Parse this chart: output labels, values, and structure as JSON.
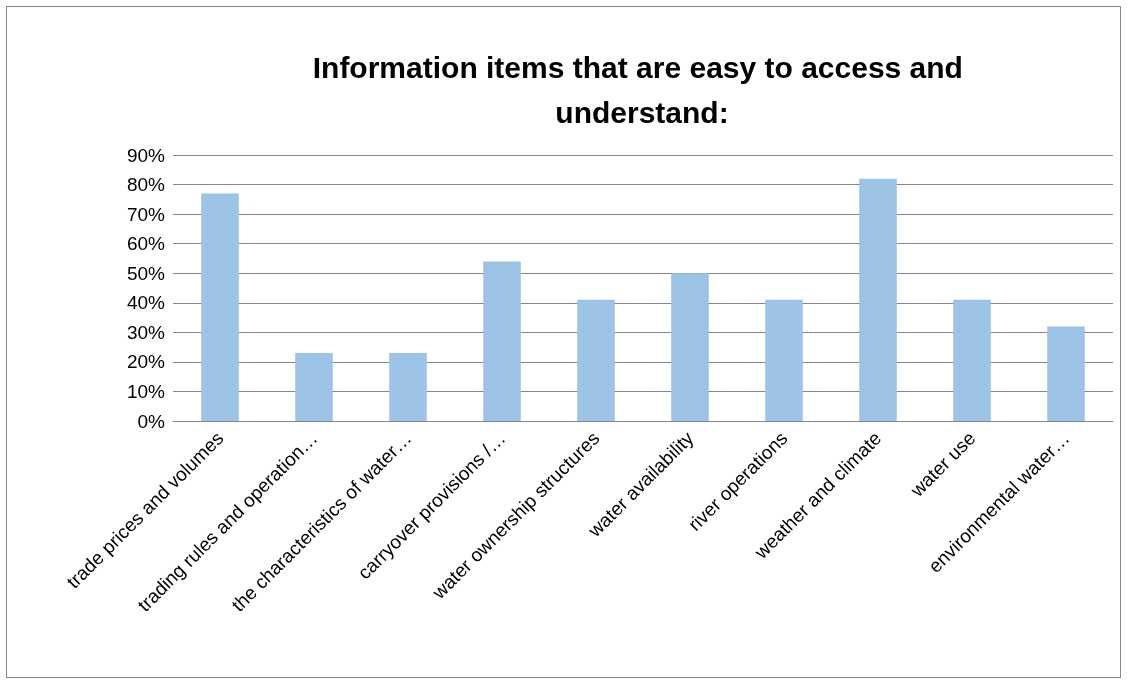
{
  "chart_data": {
    "type": "bar",
    "title": "Information items that are easy to access and understand:",
    "categories": [
      "trade prices and volumes",
      "trading rules and operation…",
      "the characteristics of water…",
      "carryover provisions /…",
      "water ownership structures",
      "water availability",
      "river operations",
      "weather and climate",
      "water use",
      "environmental water…"
    ],
    "values": [
      77,
      23,
      23,
      54,
      41,
      50,
      41,
      82,
      41,
      32
    ],
    "color": "#9dc3e6",
    "ylim": [
      0,
      90
    ],
    "yticks": [
      {
        "value": 0,
        "label": "0%"
      },
      {
        "value": 10,
        "label": "10%"
      },
      {
        "value": 20,
        "label": "20%"
      },
      {
        "value": 30,
        "label": "30%"
      },
      {
        "value": 40,
        "label": "40%"
      },
      {
        "value": 50,
        "label": "50%"
      },
      {
        "value": 60,
        "label": "60%"
      },
      {
        "value": 70,
        "label": "70%"
      },
      {
        "value": 80,
        "label": "80%"
      },
      {
        "value": 90,
        "label": "90%"
      }
    ],
    "grid": "y"
  }
}
